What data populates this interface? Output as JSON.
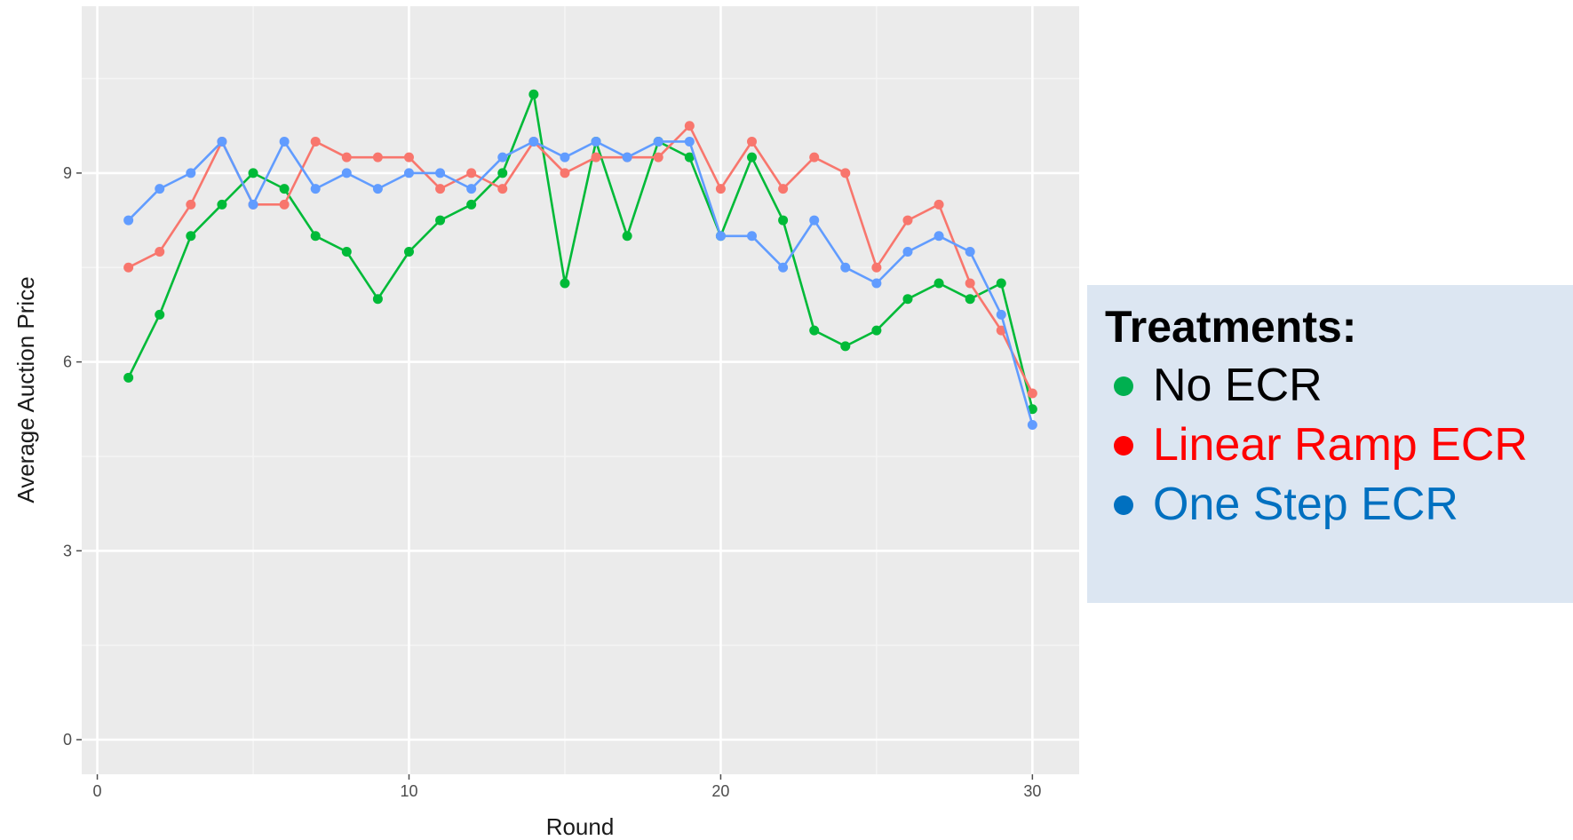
{
  "chart_data": {
    "type": "line",
    "xlabel": "Round",
    "ylabel": "Average Auction Price",
    "xlim": [
      -0.5,
      31.5
    ],
    "ylim": [
      -0.55,
      11.65
    ],
    "xticks": [
      0,
      10,
      20,
      30
    ],
    "yticks": [
      0,
      3,
      6,
      9
    ],
    "grid": true,
    "legend_placement": "right",
    "x": [
      1,
      2,
      3,
      4,
      5,
      6,
      7,
      8,
      9,
      10,
      11,
      12,
      13,
      14,
      15,
      16,
      17,
      18,
      19,
      20,
      21,
      22,
      23,
      24,
      25,
      26,
      27,
      28,
      29,
      30
    ],
    "series": [
      {
        "key": "no_ecr",
        "color": "#00ba38",
        "values": [
          5.75,
          6.75,
          8.0,
          8.5,
          9.0,
          8.75,
          8.0,
          7.75,
          7.0,
          7.75,
          8.25,
          8.5,
          9.0,
          10.25,
          7.25,
          9.5,
          8.0,
          9.5,
          9.25,
          8.0,
          9.25,
          8.25,
          6.5,
          6.25,
          6.5,
          7.0,
          7.25,
          7.0,
          7.25,
          5.25
        ]
      },
      {
        "key": "linear_ramp_ecr",
        "color": "#f8766d",
        "values": [
          7.5,
          7.75,
          8.5,
          9.5,
          8.5,
          8.5,
          9.5,
          9.25,
          9.25,
          9.25,
          8.75,
          9.0,
          8.75,
          9.5,
          9.0,
          9.25,
          9.25,
          9.25,
          9.75,
          8.75,
          9.5,
          8.75,
          9.25,
          9.0,
          7.5,
          8.25,
          8.5,
          7.25,
          6.5,
          5.5
        ]
      },
      {
        "key": "one_step_ecr",
        "color": "#619cff",
        "values": [
          8.25,
          8.75,
          9.0,
          9.5,
          8.5,
          9.5,
          8.75,
          9.0,
          8.75,
          9.0,
          9.0,
          8.75,
          9.25,
          9.5,
          9.25,
          9.5,
          9.25,
          9.5,
          9.5,
          8.0,
          8.0,
          7.5,
          8.25,
          7.5,
          7.25,
          7.75,
          8.0,
          7.75,
          6.75,
          5.0
        ]
      }
    ]
  },
  "legend": {
    "title": "Treatments:",
    "items": [
      {
        "label": "No ECR",
        "text_color": "#000000",
        "dot_color": "#00b050"
      },
      {
        "label": "Linear Ramp ECR",
        "text_color": "#ff0000",
        "dot_color": "#ff0000"
      },
      {
        "label": "One Step ECR",
        "text_color": "#0070c0",
        "dot_color": "#0070c0"
      }
    ]
  }
}
